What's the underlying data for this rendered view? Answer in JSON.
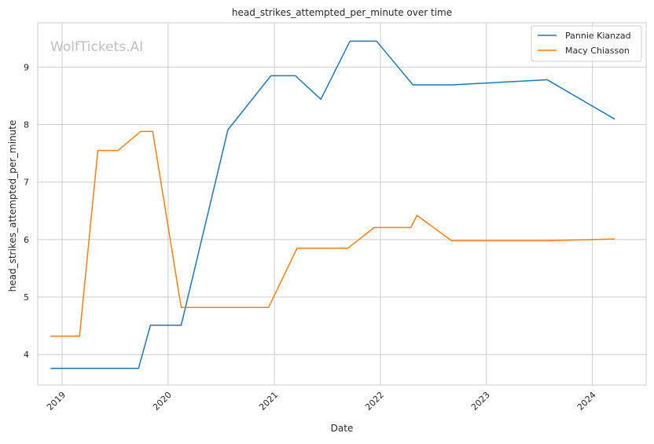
{
  "watermark": "WolfTickets.AI",
  "chart_data": {
    "type": "line",
    "title": "head_strikes_attempted_per_minute over time",
    "xlabel": "Date",
    "ylabel": "head_strikes_attempted_per_minute",
    "x_ticks": [
      "2019",
      "2020",
      "2021",
      "2022",
      "2023",
      "2024"
    ],
    "y_ticks": [
      4,
      5,
      6,
      7,
      8,
      9
    ],
    "xlim": [
      "2018-10-09",
      "2024-07-04"
    ],
    "ylim": [
      3.47,
      9.77
    ],
    "grid": true,
    "legend_position": "top-right",
    "colors": {
      "Pannie Kianzad": "#1f77b4",
      "Macy Chiasson": "#ff7f0e",
      "grid": "#cccccc",
      "axes": "#cccccc",
      "watermark": "#bfbfbf"
    },
    "series": [
      {
        "name": "Pannie Kianzad",
        "x": [
          "2018-11-24",
          "2019-09-21",
          "2019-11-01",
          "2020-02-15",
          "2020-07-25",
          "2020-12-20",
          "2021-03-14",
          "2021-06-10",
          "2021-09-18",
          "2021-12-19",
          "2022-04-23",
          "2022-09-04",
          "2023-07-29",
          "2024-03-16"
        ],
        "y": [
          3.76,
          3.76,
          4.51,
          4.51,
          7.91,
          8.85,
          8.85,
          8.44,
          9.45,
          9.45,
          8.69,
          8.69,
          8.78,
          8.1
        ]
      },
      {
        "name": "Macy Chiasson",
        "x": [
          "2018-11-24",
          "2019-03-02",
          "2019-05-04",
          "2019-07-13",
          "2019-09-28",
          "2019-11-09",
          "2020-02-15",
          "2020-12-12",
          "2021-03-20",
          "2021-09-11",
          "2021-12-11",
          "2022-04-16",
          "2022-05-07",
          "2022-09-03",
          "2023-07-29",
          "2024-03-16"
        ],
        "y": [
          4.32,
          4.32,
          7.55,
          7.55,
          7.88,
          7.88,
          4.82,
          4.82,
          5.85,
          5.85,
          6.21,
          6.21,
          6.42,
          5.98,
          5.98,
          6.01
        ]
      }
    ]
  }
}
